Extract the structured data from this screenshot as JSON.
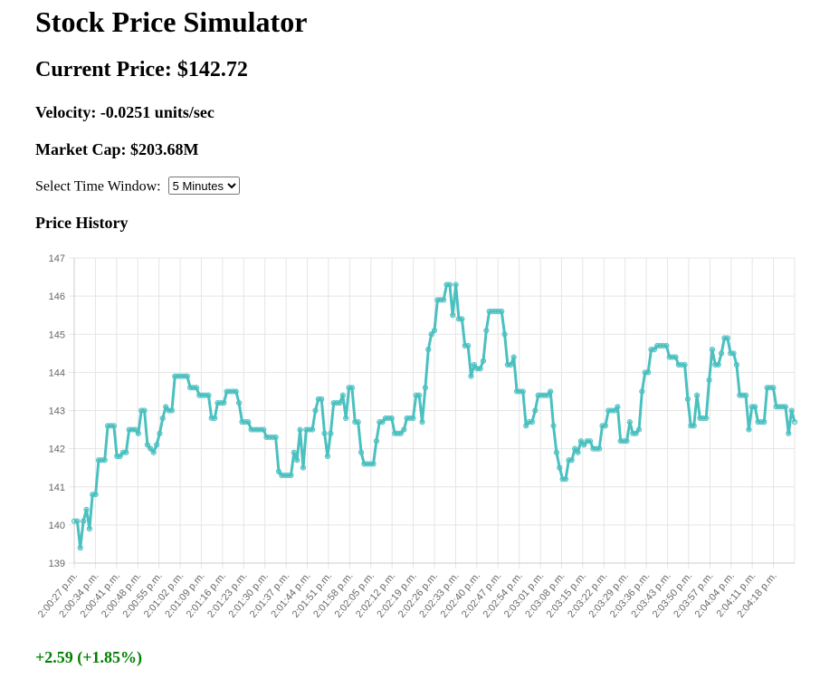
{
  "page": {
    "title": "Stock Price Simulator",
    "current_price_label": "Current Price: $142.72",
    "velocity_label": "Velocity: -0.0251 units/sec",
    "market_cap_label": "Market Cap: $203.68M",
    "time_window_label": "Select Time Window:",
    "time_window_selected": "5 Minutes",
    "history_heading": "Price History",
    "change_text": "+2.59 (+1.85%)"
  },
  "colors": {
    "line": "#4bc0c0",
    "change_positive": "#008000",
    "grid": "#e5e5e5"
  },
  "chart_data": {
    "type": "line",
    "title": "",
    "xlabel": "",
    "ylabel": "",
    "ylim": [
      139,
      147
    ],
    "yticks": [
      139,
      140,
      141,
      142,
      143,
      144,
      145,
      146,
      147
    ],
    "x_tick_labels": [
      "2:00:27 p.m.",
      "2:00:34 p.m.",
      "2:00:41 p.m.",
      "2:00:48 p.m.",
      "2:00:55 p.m.",
      "2:01:02 p.m.",
      "2:01:09 p.m.",
      "2:01:16 p.m.",
      "2:01:23 p.m.",
      "2:01:30 p.m.",
      "2:01:37 p.m.",
      "2:01:44 p.m.",
      "2:01:51 p.m.",
      "2:01:58 p.m.",
      "2:02:05 p.m.",
      "2:02:12 p.m.",
      "2:02:19 p.m.",
      "2:02:26 p.m.",
      "2:02:33 p.m.",
      "2:02:40 p.m.",
      "2:02:47 p.m.",
      "2:02:54 p.m.",
      "2:03:01 p.m.",
      "2:03:08 p.m.",
      "2:03:15 p.m.",
      "2:03:22 p.m.",
      "2:03:29 p.m.",
      "2:03:36 p.m.",
      "2:03:43 p.m.",
      "2:03:50 p.m.",
      "2:03:57 p.m.",
      "2:04:04 p.m.",
      "2:04:11 p.m.",
      "2:04:18 p.m."
    ],
    "grid": true,
    "legend": "none",
    "series": [
      {
        "values": [
          140.1,
          140.1,
          139.4,
          140.1,
          140.4,
          139.9,
          140.8,
          140.8,
          141.7,
          141.7,
          141.7,
          142.6,
          142.6,
          142.6,
          141.8,
          141.8,
          141.9,
          141.9,
          142.5,
          142.5,
          142.5,
          142.4,
          143.0,
          143.0,
          142.1,
          142.0,
          141.9,
          142.1,
          142.4,
          142.8,
          143.1,
          143.0,
          143.0,
          143.9,
          143.9,
          143.9,
          143.9,
          143.9,
          143.6,
          143.6,
          143.6,
          143.4,
          143.4,
          143.4,
          143.4,
          142.8,
          142.8,
          143.2,
          143.2,
          143.2,
          143.5,
          143.5,
          143.5,
          143.5,
          143.2,
          142.7,
          142.7,
          142.7,
          142.5,
          142.5,
          142.5,
          142.5,
          142.5,
          142.3,
          142.3,
          142.3,
          142.3,
          141.4,
          141.3,
          141.3,
          141.3,
          141.3,
          141.9,
          141.7,
          142.5,
          141.5,
          142.5,
          142.5,
          142.5,
          143.0,
          143.3,
          143.3,
          142.4,
          141.8,
          142.4,
          143.2,
          143.2,
          143.2,
          143.4,
          142.8,
          143.6,
          143.6,
          142.7,
          142.7,
          141.9,
          141.6,
          141.6,
          141.6,
          141.6,
          142.2,
          142.7,
          142.7,
          142.8,
          142.8,
          142.8,
          142.4,
          142.4,
          142.4,
          142.5,
          142.8,
          142.8,
          142.8,
          143.4,
          143.4,
          142.7,
          143.6,
          144.6,
          145.0,
          145.1,
          145.9,
          145.9,
          145.9,
          146.3,
          146.3,
          145.5,
          146.3,
          145.4,
          145.4,
          144.7,
          144.7,
          143.9,
          144.2,
          144.1,
          144.1,
          144.3,
          145.1,
          145.6,
          145.6,
          145.6,
          145.6,
          145.6,
          145.0,
          144.2,
          144.2,
          144.4,
          143.5,
          143.5,
          143.5,
          142.6,
          142.7,
          142.7,
          143.0,
          143.4,
          143.4,
          143.4,
          143.4,
          143.5,
          142.6,
          141.9,
          141.5,
          141.2,
          141.2,
          141.7,
          141.7,
          142.0,
          141.9,
          142.2,
          142.1,
          142.2,
          142.2,
          142.0,
          142.0,
          142.0,
          142.6,
          142.6,
          143.0,
          143.0,
          143.0,
          143.1,
          142.2,
          142.2,
          142.2,
          142.7,
          142.4,
          142.4,
          142.5,
          143.5,
          144.0,
          144.0,
          144.6,
          144.6,
          144.7,
          144.7,
          144.7,
          144.7,
          144.4,
          144.4,
          144.4,
          144.2,
          144.2,
          144.2,
          143.3,
          142.6,
          142.6,
          143.4,
          142.8,
          142.8,
          142.8,
          143.8,
          144.6,
          144.2,
          144.2,
          144.5,
          144.9,
          144.9,
          144.5,
          144.5,
          144.2,
          143.4,
          143.4,
          143.4,
          142.5,
          143.1,
          143.1,
          142.7,
          142.7,
          142.7,
          143.6,
          143.6,
          143.6,
          143.1,
          143.1,
          143.1,
          143.1,
          142.4,
          143.0,
          142.7
        ]
      }
    ]
  }
}
